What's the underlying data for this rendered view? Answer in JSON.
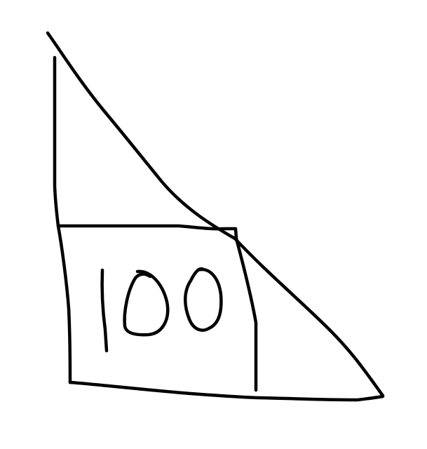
{
  "sketch": {
    "label_text": "100",
    "ink_color": "#000000",
    "background_color": "#ffffff"
  }
}
